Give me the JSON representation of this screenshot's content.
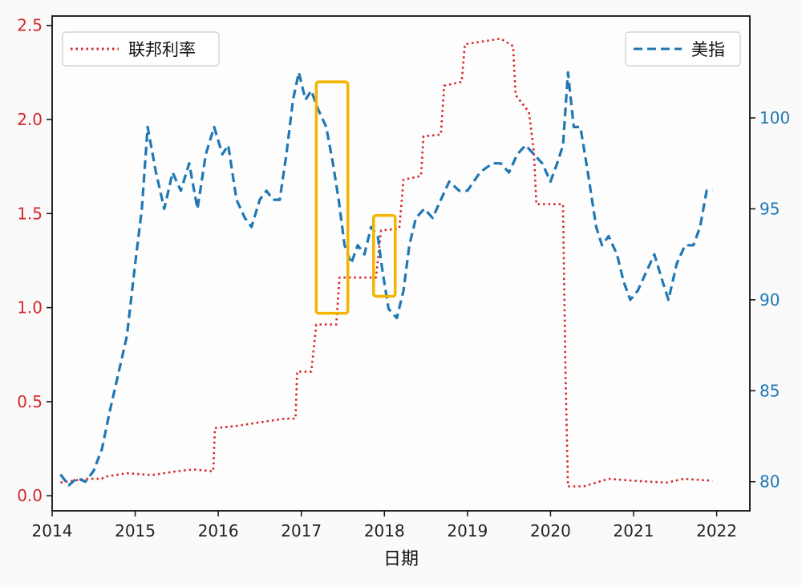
{
  "chart_data": {
    "type": "line",
    "xlabel": "日期",
    "xlim": [
      2014.0,
      2022.4
    ],
    "x_ticks": [
      "2014",
      "2015",
      "2016",
      "2017",
      "2018",
      "2019",
      "2020",
      "2021",
      "2022"
    ],
    "y_left": {
      "ylim": [
        -0.08,
        2.55
      ],
      "ticks": [
        "0.0",
        "0.5",
        "1.0",
        "1.5",
        "2.0",
        "2.5"
      ],
      "color": "#d62728"
    },
    "y_right": {
      "ylim": [
        78.4,
        105.6
      ],
      "ticks": [
        "80",
        "85",
        "90",
        "95",
        "100"
      ],
      "color": "#1f77b4"
    },
    "grid": false,
    "series": [
      {
        "name": "联邦利率",
        "axis": "left",
        "style": "dotted",
        "color": "#d62728",
        "legend_position": "top-left",
        "points": [
          [
            2014.1,
            0.07
          ],
          [
            2014.4,
            0.09
          ],
          [
            2014.6,
            0.09
          ],
          [
            2014.62,
            0.1
          ],
          [
            2014.9,
            0.12
          ],
          [
            2015.2,
            0.11
          ],
          [
            2015.5,
            0.13
          ],
          [
            2015.7,
            0.14
          ],
          [
            2015.94,
            0.13
          ],
          [
            2015.96,
            0.36
          ],
          [
            2016.2,
            0.37
          ],
          [
            2016.5,
            0.39
          ],
          [
            2016.8,
            0.41
          ],
          [
            2016.93,
            0.41
          ],
          [
            2016.95,
            0.66
          ],
          [
            2017.12,
            0.66
          ],
          [
            2017.18,
            0.91
          ],
          [
            2017.42,
            0.91
          ],
          [
            2017.46,
            1.16
          ],
          [
            2017.9,
            1.16
          ],
          [
            2017.96,
            1.41
          ],
          [
            2018.18,
            1.42
          ],
          [
            2018.23,
            1.68
          ],
          [
            2018.44,
            1.7
          ],
          [
            2018.47,
            1.91
          ],
          [
            2018.68,
            1.92
          ],
          [
            2018.72,
            2.18
          ],
          [
            2018.93,
            2.2
          ],
          [
            2018.97,
            2.4
          ],
          [
            2019.4,
            2.43
          ],
          [
            2019.55,
            2.39
          ],
          [
            2019.58,
            2.13
          ],
          [
            2019.74,
            2.04
          ],
          [
            2019.8,
            1.83
          ],
          [
            2019.83,
            1.55
          ],
          [
            2020.15,
            1.55
          ],
          [
            2020.18,
            0.65
          ],
          [
            2020.21,
            0.05
          ],
          [
            2020.4,
            0.05
          ],
          [
            2020.7,
            0.09
          ],
          [
            2021.0,
            0.08
          ],
          [
            2021.4,
            0.07
          ],
          [
            2021.6,
            0.09
          ],
          [
            2021.95,
            0.08
          ]
        ]
      },
      {
        "name": "美指",
        "axis": "right",
        "style": "dashed",
        "color": "#1f77b4",
        "legend_position": "top-right",
        "points": [
          [
            2014.1,
            80.4
          ],
          [
            2014.2,
            79.8
          ],
          [
            2014.3,
            80.2
          ],
          [
            2014.4,
            80.0
          ],
          [
            2014.5,
            80.6
          ],
          [
            2014.6,
            81.8
          ],
          [
            2014.7,
            84.0
          ],
          [
            2014.8,
            86.0
          ],
          [
            2014.9,
            88.0
          ],
          [
            2015.0,
            92.0
          ],
          [
            2015.08,
            95.0
          ],
          [
            2015.15,
            99.5
          ],
          [
            2015.25,
            97.0
          ],
          [
            2015.35,
            95.0
          ],
          [
            2015.45,
            97.0
          ],
          [
            2015.55,
            96.0
          ],
          [
            2015.65,
            97.5
          ],
          [
            2015.75,
            95.0
          ],
          [
            2015.85,
            98.0
          ],
          [
            2015.95,
            99.5
          ],
          [
            2016.05,
            98.0
          ],
          [
            2016.12,
            98.5
          ],
          [
            2016.22,
            95.5
          ],
          [
            2016.32,
            94.5
          ],
          [
            2016.4,
            94.0
          ],
          [
            2016.5,
            95.5
          ],
          [
            2016.58,
            96.0
          ],
          [
            2016.66,
            95.5
          ],
          [
            2016.74,
            95.5
          ],
          [
            2016.82,
            98.0
          ],
          [
            2016.9,
            101.0
          ],
          [
            2016.97,
            102.5
          ],
          [
            2017.05,
            101.0
          ],
          [
            2017.12,
            101.5
          ],
          [
            2017.2,
            100.5
          ],
          [
            2017.3,
            99.5
          ],
          [
            2017.38,
            97.5
          ],
          [
            2017.45,
            95.5
          ],
          [
            2017.52,
            93.0
          ],
          [
            2017.6,
            92.0
          ],
          [
            2017.68,
            93.0
          ],
          [
            2017.76,
            92.5
          ],
          [
            2017.84,
            94.0
          ],
          [
            2017.92,
            93.5
          ],
          [
            2017.98,
            91.5
          ],
          [
            2018.05,
            89.5
          ],
          [
            2018.15,
            89.0
          ],
          [
            2018.23,
            90.5
          ],
          [
            2018.3,
            93.0
          ],
          [
            2018.38,
            94.5
          ],
          [
            2018.48,
            95.0
          ],
          [
            2018.58,
            94.5
          ],
          [
            2018.68,
            95.5
          ],
          [
            2018.78,
            96.5
          ],
          [
            2018.9,
            96.0
          ],
          [
            2019.0,
            96.0
          ],
          [
            2019.15,
            97.0
          ],
          [
            2019.3,
            97.5
          ],
          [
            2019.4,
            97.5
          ],
          [
            2019.5,
            97.0
          ],
          [
            2019.6,
            98.0
          ],
          [
            2019.7,
            98.5
          ],
          [
            2019.8,
            98.0
          ],
          [
            2019.9,
            97.5
          ],
          [
            2020.0,
            96.5
          ],
          [
            2020.08,
            97.5
          ],
          [
            2020.15,
            98.5
          ],
          [
            2020.21,
            102.5
          ],
          [
            2020.28,
            99.5
          ],
          [
            2020.36,
            99.5
          ],
          [
            2020.45,
            97.0
          ],
          [
            2020.55,
            94.0
          ],
          [
            2020.62,
            93.0
          ],
          [
            2020.7,
            93.5
          ],
          [
            2020.8,
            92.5
          ],
          [
            2020.88,
            91.0
          ],
          [
            2020.96,
            90.0
          ],
          [
            2021.05,
            90.5
          ],
          [
            2021.15,
            91.5
          ],
          [
            2021.25,
            92.5
          ],
          [
            2021.35,
            91.0
          ],
          [
            2021.42,
            90.0
          ],
          [
            2021.52,
            92.0
          ],
          [
            2021.62,
            93.0
          ],
          [
            2021.72,
            93.0
          ],
          [
            2021.8,
            94.0
          ],
          [
            2021.88,
            96.0
          ],
          [
            2021.95,
            96.0
          ]
        ]
      }
    ],
    "annotations": [
      {
        "type": "highlight-box",
        "color": "#f4b400",
        "x_range": [
          2017.18,
          2017.56
        ],
        "y_left_range": [
          0.97,
          2.2
        ]
      },
      {
        "type": "highlight-box",
        "color": "#f4b400",
        "x_range": [
          2017.87,
          2018.13
        ],
        "y_left_range": [
          1.06,
          1.49
        ]
      }
    ]
  }
}
